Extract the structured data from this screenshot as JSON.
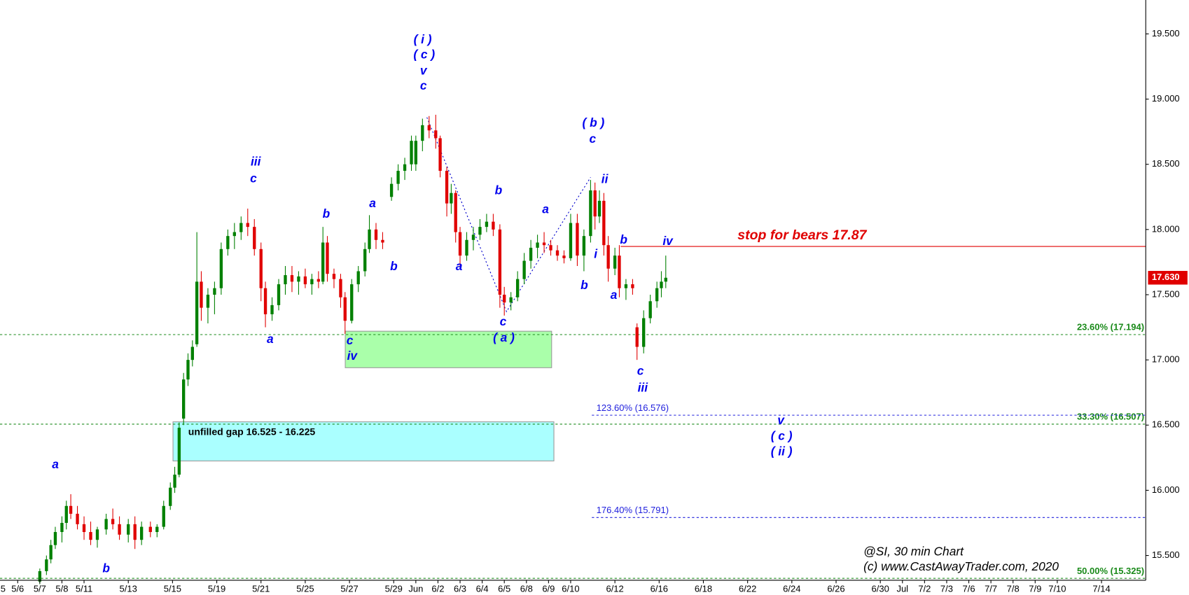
{
  "chart_data": {
    "type": "candlestick",
    "up_color": "#008000",
    "down_color": "#e00000",
    "annotation_color": "#0000ee",
    "xlim": [
      0.2,
      52
    ],
    "ylim": [
      15.31,
      19.76
    ],
    "yticks": [
      {
        "value": 15.5,
        "label": "15.500"
      },
      {
        "value": 16,
        "label": "16.000"
      },
      {
        "value": 16.5,
        "label": "16.500"
      },
      {
        "value": 17,
        "label": "17.000"
      },
      {
        "value": 17.5,
        "label": "17.500"
      },
      {
        "value": 18,
        "label": "18.000"
      },
      {
        "value": 18.5,
        "label": "18.500"
      },
      {
        "value": 19,
        "label": "19.000"
      },
      {
        "value": 19.5,
        "label": "19.500"
      }
    ],
    "xticks": [
      {
        "value": 0,
        "label": "5"
      },
      {
        "value": 1,
        "label": "5/6"
      },
      {
        "value": 2,
        "label": "5/7"
      },
      {
        "value": 3,
        "label": "5/8"
      },
      {
        "value": 4,
        "label": "5/11"
      },
      {
        "value": 6,
        "label": "5/13"
      },
      {
        "value": 8,
        "label": "5/15"
      },
      {
        "value": 10,
        "label": "5/19"
      },
      {
        "value": 12,
        "label": "5/21"
      },
      {
        "value": 14,
        "label": "5/25"
      },
      {
        "value": 16,
        "label": "5/27"
      },
      {
        "value": 18,
        "label": "5/29"
      },
      {
        "value": 19,
        "label": "Jun"
      },
      {
        "value": 20,
        "label": "6/2"
      },
      {
        "value": 21,
        "label": "6/3"
      },
      {
        "value": 22,
        "label": "6/4"
      },
      {
        "value": 23,
        "label": "6/5"
      },
      {
        "value": 24,
        "label": "6/8"
      },
      {
        "value": 25,
        "label": "6/9"
      },
      {
        "value": 26,
        "label": "6/10"
      },
      {
        "value": 28,
        "label": "6/12"
      },
      {
        "value": 30,
        "label": "6/16"
      },
      {
        "value": 32,
        "label": "6/18"
      },
      {
        "value": 34,
        "label": "6/22"
      },
      {
        "value": 36,
        "label": "6/24"
      },
      {
        "value": 38,
        "label": "6/26"
      },
      {
        "value": 40,
        "label": "6/30"
      },
      {
        "value": 41,
        "label": "Jul"
      },
      {
        "value": 42,
        "label": "7/2"
      },
      {
        "value": 43,
        "label": "7/3"
      },
      {
        "value": 44,
        "label": "7/6"
      },
      {
        "value": 45,
        "label": "7/7"
      },
      {
        "value": 46,
        "label": "7/8"
      },
      {
        "value": 47,
        "label": "7/9"
      },
      {
        "value": 48,
        "label": "7/10"
      },
      {
        "value": 50,
        "label": "7/14"
      }
    ],
    "x": [
      2.0,
      2.3,
      2.5,
      2.7,
      3.0,
      3.2,
      3.4,
      3.7,
      4.0,
      4.3,
      4.6,
      5.0,
      5.3,
      5.6,
      6.0,
      6.3,
      6.6,
      7.0,
      7.3,
      7.6,
      7.9,
      8.1,
      8.3,
      8.5,
      8.7,
      8.9,
      9.1,
      9.3,
      9.6,
      9.9,
      10.2,
      10.5,
      10.8,
      11.1,
      11.4,
      11.7,
      12.0,
      12.2,
      12.5,
      12.8,
      13.1,
      13.4,
      13.7,
      14.0,
      14.3,
      14.6,
      14.8,
      15.0,
      15.3,
      15.6,
      15.8,
      16.1,
      16.4,
      16.7,
      16.9,
      17.2,
      17.5,
      17.9,
      18.2,
      18.5,
      18.8,
      19.0,
      19.3,
      19.6,
      19.9,
      20.1,
      20.4,
      20.6,
      20.8,
      21.0,
      21.3,
      21.6,
      21.9,
      22.2,
      22.5,
      22.8,
      23.0,
      23.3,
      23.6,
      23.9,
      24.2,
      24.5,
      24.8,
      25.1,
      25.4,
      25.7,
      26.0,
      26.3,
      26.6,
      26.9,
      27.1,
      27.3,
      27.5,
      27.7,
      28.0,
      28.2,
      28.5,
      28.8,
      29.0,
      29.3,
      29.6,
      29.9,
      30.1,
      30.3
    ],
    "open": [
      15.3,
      15.38,
      15.47,
      15.58,
      15.68,
      15.75,
      15.88,
      15.82,
      15.74,
      15.68,
      15.62,
      15.7,
      15.78,
      15.74,
      15.66,
      15.74,
      15.62,
      15.72,
      15.68,
      15.72,
      15.88,
      16.02,
      16.12,
      16.55,
      16.85,
      17.0,
      17.12,
      17.6,
      17.4,
      17.5,
      17.55,
      17.85,
      17.95,
      17.98,
      18.05,
      18.02,
      17.85,
      17.55,
      17.35,
      17.42,
      17.58,
      17.65,
      17.6,
      17.64,
      17.58,
      17.62,
      17.6,
      17.9,
      17.66,
      17.62,
      17.48,
      17.3,
      17.58,
      17.68,
      17.85,
      18.0,
      17.92,
      18.25,
      18.35,
      18.45,
      18.5,
      18.5,
      18.68,
      18.8,
      18.76,
      18.7,
      18.45,
      18.2,
      18.28,
      17.98,
      17.8,
      17.92,
      17.96,
      18.02,
      18.06,
      18.0,
      17.5,
      17.44,
      17.48,
      17.62,
      17.76,
      17.86,
      17.9,
      17.88,
      17.84,
      17.8,
      17.78,
      18.05,
      17.8,
      17.95,
      18.3,
      18.1,
      18.22,
      17.88,
      17.7,
      17.8,
      17.55,
      17.58,
      17.25,
      17.1,
      17.32,
      17.45,
      17.55,
      17.6
    ],
    "high": [
      15.4,
      15.5,
      15.62,
      15.72,
      15.8,
      15.92,
      15.97,
      15.88,
      15.8,
      15.76,
      15.72,
      15.82,
      15.86,
      15.8,
      15.78,
      15.8,
      15.76,
      15.76,
      15.74,
      15.92,
      16.06,
      16.18,
      16.52,
      16.9,
      17.05,
      17.15,
      17.98,
      17.68,
      17.55,
      17.6,
      17.9,
      18.0,
      18.05,
      18.1,
      18.16,
      18.08,
      17.9,
      17.6,
      17.48,
      17.62,
      17.72,
      17.72,
      17.68,
      17.7,
      17.66,
      17.68,
      18.02,
      17.95,
      17.7,
      17.66,
      17.52,
      17.62,
      17.72,
      17.9,
      18.11,
      18.05,
      17.98,
      18.4,
      18.5,
      18.55,
      18.72,
      18.72,
      18.85,
      18.87,
      18.88,
      18.72,
      18.48,
      18.35,
      18.3,
      18.02,
      17.98,
      18.02,
      18.08,
      18.12,
      18.12,
      18.04,
      17.56,
      17.52,
      17.68,
      17.82,
      17.92,
      17.96,
      17.98,
      17.92,
      17.88,
      17.84,
      18.12,
      18.12,
      18.0,
      18.38,
      18.36,
      18.3,
      18.28,
      17.95,
      17.86,
      17.88,
      17.62,
      17.62,
      17.28,
      17.38,
      17.5,
      17.6,
      17.68,
      17.8
    ],
    "low": [
      15.28,
      15.35,
      15.44,
      15.55,
      15.6,
      15.7,
      15.78,
      15.7,
      15.62,
      15.58,
      15.56,
      15.66,
      15.7,
      15.62,
      15.6,
      15.55,
      15.58,
      15.64,
      15.64,
      15.7,
      15.85,
      15.98,
      16.1,
      16.5,
      16.8,
      16.95,
      17.1,
      17.3,
      17.28,
      17.35,
      17.5,
      17.8,
      17.85,
      17.92,
      17.95,
      17.8,
      17.45,
      17.25,
      17.3,
      17.38,
      17.5,
      17.52,
      17.5,
      17.55,
      17.5,
      17.55,
      17.58,
      17.6,
      17.55,
      17.4,
      17.2,
      17.28,
      17.52,
      17.64,
      17.82,
      17.85,
      17.85,
      18.22,
      18.3,
      18.38,
      18.45,
      18.45,
      18.6,
      18.7,
      18.62,
      18.4,
      18.1,
      18.12,
      17.9,
      17.7,
      17.76,
      17.84,
      17.92,
      17.98,
      17.95,
      17.4,
      17.34,
      17.38,
      17.45,
      17.58,
      17.7,
      17.78,
      17.82,
      17.8,
      17.76,
      17.74,
      17.76,
      17.72,
      17.68,
      17.9,
      18.0,
      18.05,
      17.8,
      17.6,
      17.65,
      17.48,
      17.46,
      17.5,
      17.0,
      17.05,
      17.28,
      17.4,
      17.48,
      17.55
    ],
    "close": [
      15.38,
      15.47,
      15.58,
      15.68,
      15.75,
      15.88,
      15.82,
      15.74,
      15.68,
      15.62,
      15.7,
      15.78,
      15.74,
      15.66,
      15.74,
      15.62,
      15.72,
      15.68,
      15.72,
      15.88,
      16.02,
      16.12,
      16.48,
      16.85,
      17.0,
      17.1,
      17.6,
      17.4,
      17.5,
      17.55,
      17.85,
      17.95,
      17.98,
      18.05,
      18.02,
      17.85,
      17.55,
      17.35,
      17.42,
      17.58,
      17.65,
      17.6,
      17.64,
      17.58,
      17.62,
      17.6,
      17.9,
      17.66,
      17.62,
      17.48,
      17.3,
      17.58,
      17.68,
      17.85,
      18.0,
      17.92,
      17.9,
      18.35,
      18.45,
      18.5,
      18.68,
      18.68,
      18.8,
      18.76,
      18.7,
      18.45,
      18.2,
      18.28,
      17.98,
      17.8,
      17.92,
      17.96,
      18.02,
      18.06,
      18.0,
      17.5,
      17.44,
      17.48,
      17.62,
      17.76,
      17.86,
      17.9,
      17.88,
      17.84,
      17.8,
      17.78,
      18.05,
      17.8,
      17.95,
      18.3,
      18.1,
      18.22,
      17.88,
      17.7,
      17.8,
      17.55,
      17.58,
      17.55,
      17.1,
      17.32,
      17.45,
      17.55,
      17.6,
      17.63
    ],
    "last_price": {
      "value": 17.63,
      "label": "17.630"
    },
    "wave_line": {
      "color": "#0000cc",
      "x": [
        19.5,
        23.1,
        26.9
      ],
      "values": [
        18.86,
        17.37,
        18.4
      ]
    },
    "stop": {
      "label": "stop for bears 17.87",
      "value": 17.87,
      "color": "#e00000"
    },
    "levels": [
      {
        "label": "23.60% (17.194)",
        "value": 17.194,
        "color": "#1a8a1a"
      },
      {
        "label": "33.30% (16.507)",
        "value": 16.507,
        "color": "#1a8a1a"
      },
      {
        "label": "50.00% (15.325)",
        "value": 15.325,
        "color": "#1a8a1a"
      },
      {
        "label": "123.60% (16.576)",
        "value": 16.576,
        "color": "#2020dd"
      },
      {
        "label": "176.40% (15.791)",
        "value": 15.791,
        "color": "#2020dd"
      }
    ],
    "zones": [
      {
        "high": 17.22,
        "low": 16.94,
        "color": "#aaffaa"
      },
      {
        "label": "unfilled gap 16.525 - 16.225",
        "high": 16.525,
        "low": 16.225,
        "color": "#aaffff"
      }
    ],
    "annotations": [
      "( i )",
      "( c )",
      "v",
      "c",
      "iii",
      "c",
      "b",
      "a",
      "b",
      "a",
      "c",
      "iv",
      "a",
      "b",
      "a",
      "b",
      "c",
      "( a )",
      "a",
      "( b )",
      "c",
      "ii",
      "i",
      "b",
      "b",
      "iv",
      "a",
      "c",
      "iii",
      "v",
      "( c )",
      "( ii )"
    ],
    "notes": [
      "@SI, 30 min Chart",
      "(c) www.CastAwayTrader.com, 2020"
    ]
  }
}
